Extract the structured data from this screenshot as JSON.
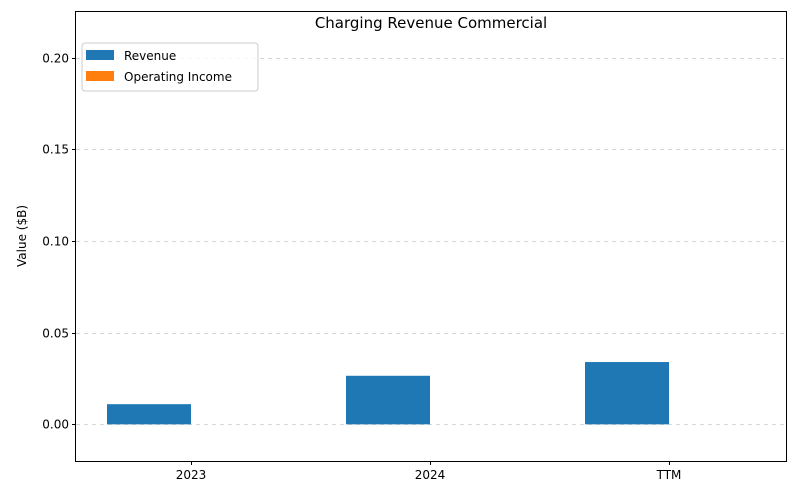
{
  "chart_data": {
    "type": "bar",
    "title": "Charging Revenue Commercial",
    "xlabel": "",
    "ylabel": "Value ($B)",
    "categories": [
      "2023",
      "2024",
      "TTM"
    ],
    "series": [
      {
        "name": "Revenue",
        "color": "#1f77b4",
        "values": [
          0.011,
          0.0265,
          0.034
        ]
      },
      {
        "name": "Operating Income",
        "color": "#ff7f0e",
        "values": [
          0,
          0,
          0
        ]
      }
    ],
    "ylim": [
      -0.02,
      0.225
    ],
    "yticks": [
      0.0,
      0.05,
      0.1,
      0.15,
      0.2
    ],
    "ytick_labels": [
      "0.00",
      "0.05",
      "0.10",
      "0.15",
      "0.20"
    ],
    "grid": "y-dashed",
    "legend_position": "top-left"
  }
}
